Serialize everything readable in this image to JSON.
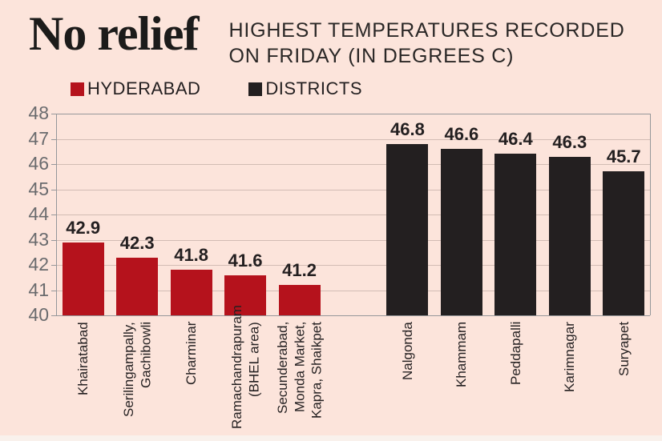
{
  "header": {
    "title": "No relief",
    "subtitle_line1": "HIGHEST TEMPERATURES RECORDED",
    "subtitle_line2": "ON FRIDAY (IN DEGREES C)"
  },
  "legend": [
    {
      "label": "HYDERABAD",
      "color": "#b5121c"
    },
    {
      "label": "DISTRICTS",
      "color": "#231f20"
    }
  ],
  "chart_data": {
    "type": "bar",
    "title": "No relief",
    "subtitle": "HIGHEST TEMPERATURES RECORDED ON FRIDAY (IN DEGREES C)",
    "xlabel": "",
    "ylabel": "",
    "ylim": [
      40,
      48
    ],
    "ytick_step": 1,
    "grid": true,
    "legend_position": "top",
    "series": [
      {
        "name": "HYDERABAD",
        "color": "#b5121c",
        "data": [
          {
            "label_lines": [
              "Khairatabad"
            ],
            "value": 42.9
          },
          {
            "label_lines": [
              "Serilingampally,",
              "Gachibowli"
            ],
            "value": 42.3
          },
          {
            "label_lines": [
              "Charminar"
            ],
            "value": 41.8
          },
          {
            "label_lines": [
              "Ramachandrapuram",
              "(BHEL area)"
            ],
            "value": 41.6
          },
          {
            "label_lines": [
              "Secunderabad,",
              "Monda Market,",
              "Kapra, Shaikpet"
            ],
            "value": 41.2
          }
        ]
      },
      {
        "name": "DISTRICTS",
        "color": "#231f20",
        "data": [
          {
            "label_lines": [
              "Nalgonda"
            ],
            "value": 46.8
          },
          {
            "label_lines": [
              "Khammam"
            ],
            "value": 46.6
          },
          {
            "label_lines": [
              "Peddapalli"
            ],
            "value": 46.4
          },
          {
            "label_lines": [
              "Karimnagar"
            ],
            "value": 46.3
          },
          {
            "label_lines": [
              "Suryapet"
            ],
            "value": 45.7
          }
        ]
      }
    ]
  },
  "colors": {
    "background": "#fce4db",
    "grid_line": "#d2bcb4",
    "axis_line": "#95979a",
    "ytick_text": "#6a6b6e",
    "value_text": "#231f20",
    "bottom_strip": "#f9f1ec"
  }
}
